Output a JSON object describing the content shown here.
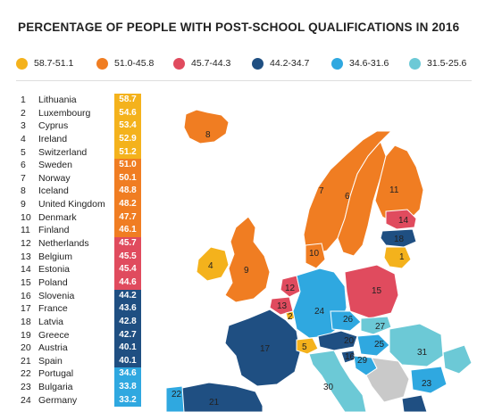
{
  "title": "PERCENTAGE OF PEOPLE WITH POST-SCHOOL QUALIFICATIONS IN 2016",
  "colors": {
    "c1": "#f4b21c",
    "c2": "#f07d22",
    "c3": "#e04b5e",
    "c4": "#1f4f82",
    "c5": "#2fa8e0",
    "c6": "#6cc9d6",
    "grey": "#c9c9c9"
  },
  "legend": [
    {
      "label": "58.7-51.1",
      "color": "#f4b21c"
    },
    {
      "label": "51.0-45.8",
      "color": "#f07d22"
    },
    {
      "label": "45.7-44.3",
      "color": "#e04b5e"
    },
    {
      "label": "44.2-34.7",
      "color": "#1f4f82"
    },
    {
      "label": "34.6-31.6",
      "color": "#2fa8e0"
    },
    {
      "label": "31.5-25.6",
      "color": "#6cc9d6"
    }
  ],
  "rows": [
    {
      "rank": "1",
      "country": "Lithuania",
      "value": "58.7",
      "color": "#f4b21c"
    },
    {
      "rank": "2",
      "country": "Luxembourg",
      "value": "54.6",
      "color": "#f4b21c"
    },
    {
      "rank": "3",
      "country": "Cyprus",
      "value": "53.4",
      "color": "#f4b21c"
    },
    {
      "rank": "4",
      "country": "Ireland",
      "value": "52.9",
      "color": "#f4b21c"
    },
    {
      "rank": "5",
      "country": "Switzerland",
      "value": "51.2",
      "color": "#f4b21c"
    },
    {
      "rank": "6",
      "country": "Sweden",
      "value": "51.0",
      "color": "#f07d22"
    },
    {
      "rank": "7",
      "country": "Norway",
      "value": "50.1",
      "color": "#f07d22"
    },
    {
      "rank": "8",
      "country": "Iceland",
      "value": "48.8",
      "color": "#f07d22"
    },
    {
      "rank": "9",
      "country": "United Kingdom",
      "value": "48.2",
      "color": "#f07d22"
    },
    {
      "rank": "10",
      "country": "Denmark",
      "value": "47.7",
      "color": "#f07d22"
    },
    {
      "rank": "11",
      "country": "Finland",
      "value": "46.1",
      "color": "#f07d22"
    },
    {
      "rank": "12",
      "country": "Netherlands",
      "value": "45.7",
      "color": "#e04b5e"
    },
    {
      "rank": "13",
      "country": "Belgium",
      "value": "45.5",
      "color": "#e04b5e"
    },
    {
      "rank": "14",
      "country": "Estonia",
      "value": "45.4",
      "color": "#e04b5e"
    },
    {
      "rank": "15",
      "country": "Poland",
      "value": "44.6",
      "color": "#e04b5e"
    },
    {
      "rank": "16",
      "country": "Slovenia",
      "value": "44.2",
      "color": "#1f4f82"
    },
    {
      "rank": "17",
      "country": "France",
      "value": "43.6",
      "color": "#1f4f82"
    },
    {
      "rank": "18",
      "country": "Latvia",
      "value": "42.8",
      "color": "#1f4f82"
    },
    {
      "rank": "19",
      "country": "Greece",
      "value": "42.7",
      "color": "#1f4f82"
    },
    {
      "rank": "20",
      "country": "Austria",
      "value": "40.1",
      "color": "#1f4f82"
    },
    {
      "rank": "21",
      "country": "Spain",
      "value": "40.1",
      "color": "#1f4f82"
    },
    {
      "rank": "22",
      "country": "Portugal",
      "value": "34.6",
      "color": "#2fa8e0"
    },
    {
      "rank": "23",
      "country": "Bulgaria",
      "value": "33.8",
      "color": "#2fa8e0"
    },
    {
      "rank": "24",
      "country": "Germany",
      "value": "33.2",
      "color": "#2fa8e0"
    }
  ],
  "map_labels": [
    "8",
    "7",
    "6",
    "11",
    "14",
    "18",
    "1",
    "4",
    "9",
    "10",
    "12",
    "13",
    "2",
    "15",
    "24",
    "26",
    "27",
    "17",
    "5",
    "20",
    "25",
    "31",
    "16",
    "29",
    "30",
    "22",
    "21",
    "23"
  ]
}
